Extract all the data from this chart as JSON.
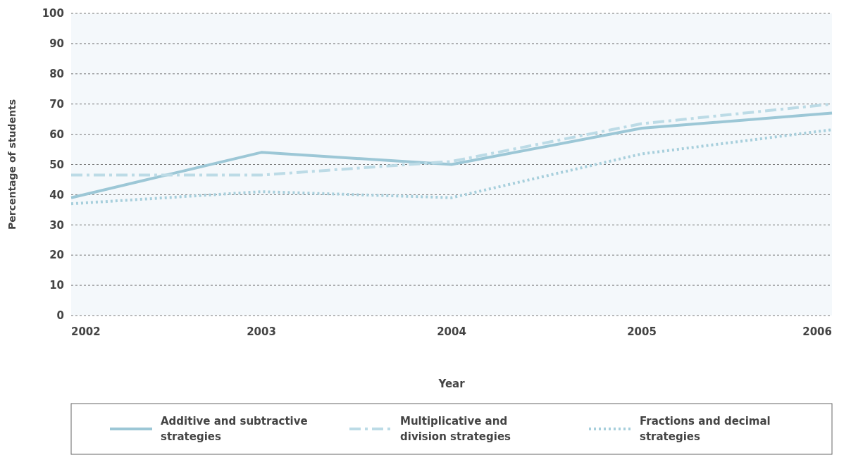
{
  "chart_data": {
    "type": "line",
    "xlabel": "Year",
    "ylabel": "Percentage of students",
    "x": [
      2002,
      2003,
      2004,
      2005,
      2006
    ],
    "xlim": [
      2002,
      2006
    ],
    "xticks": [
      2002,
      2003,
      2004,
      2005,
      2006
    ],
    "ylim": [
      0,
      100
    ],
    "yticks": [
      0,
      10,
      20,
      30,
      40,
      50,
      60,
      70,
      80,
      90,
      100
    ],
    "grid": "y",
    "legend": "bottom",
    "marker": "none",
    "series": [
      {
        "name": "Additive and subtractive strategies",
        "color": "#9cc7d6",
        "line_style": "solid",
        "values": [
          39,
          54,
          50,
          62,
          67
        ]
      },
      {
        "name": "Multiplicative and division strategies",
        "color": "#bcdbe6",
        "line_style": "dashed",
        "values": [
          46.5,
          46.5,
          51,
          63.5,
          70
        ]
      },
      {
        "name": "Fractions and decimal strategies",
        "color": "#a7cfdc",
        "line_style": "dotted",
        "values": [
          37,
          41,
          39,
          53.5,
          61.5
        ]
      }
    ]
  }
}
